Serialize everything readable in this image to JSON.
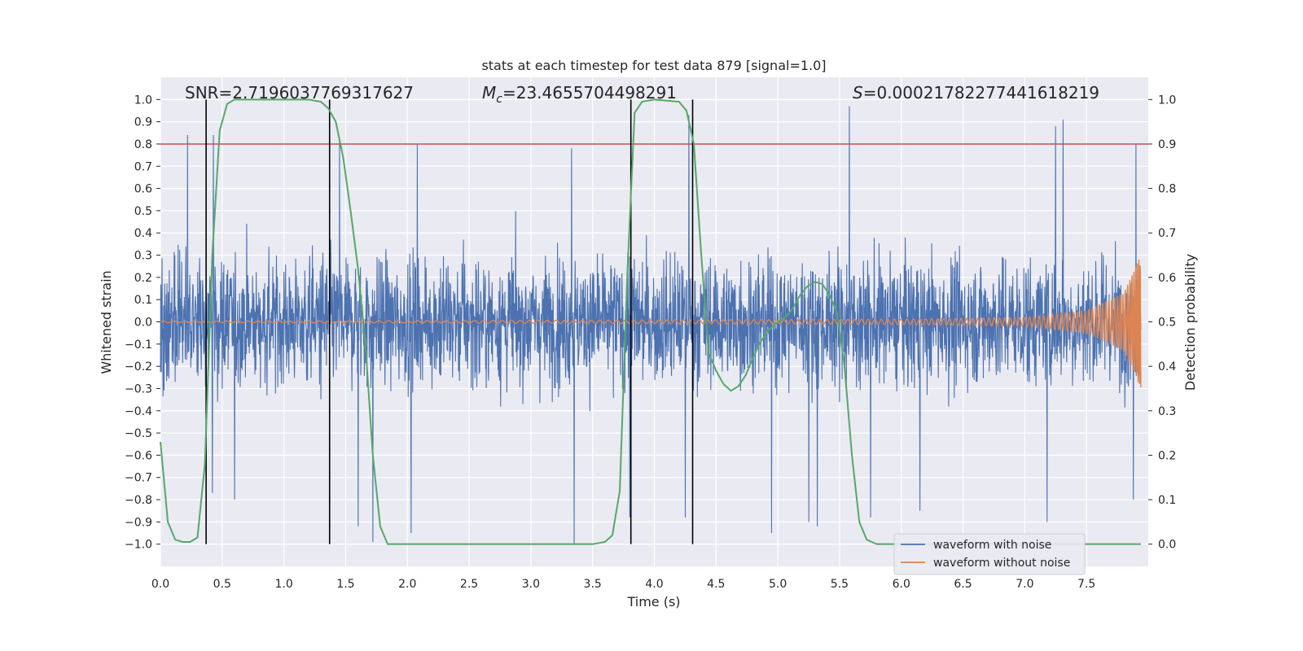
{
  "chart_data": {
    "type": "line",
    "title": "stats at each timestep for test data 879 [signal=1.0]",
    "xlabel": "Time (s)",
    "ylabel_left": "Whitened strain",
    "ylabel_right": "Detection probability",
    "xlim": [
      0.0,
      8.0
    ],
    "ylim_left": [
      -1.1,
      1.1
    ],
    "ylim_right": [
      -0.05,
      1.05
    ],
    "x_ticks": [
      0.0,
      0.5,
      1.0,
      1.5,
      2.0,
      2.5,
      3.0,
      3.5,
      4.0,
      4.5,
      5.0,
      5.5,
      6.0,
      6.5,
      7.0,
      7.5
    ],
    "x_tick_labels": [
      "0.0",
      "0.5",
      "1.0",
      "1.5",
      "2.0",
      "2.5",
      "3.0",
      "3.5",
      "4.0",
      "4.5",
      "5.0",
      "5.5",
      "6.0",
      "6.5",
      "7.0",
      "7.5"
    ],
    "y_left_ticks": [
      1.0,
      0.9,
      0.8,
      0.7,
      0.6,
      0.5,
      0.4,
      0.3,
      0.2,
      0.1,
      0.0,
      -0.1,
      -0.2,
      -0.3,
      -0.4,
      -0.5,
      -0.6,
      -0.7,
      -0.8,
      -0.9,
      -1.0
    ],
    "y_left_tick_labels": [
      "1.0",
      "0.9",
      "0.8",
      "0.7",
      "0.6",
      "0.5",
      "0.4",
      "0.3",
      "0.2",
      "0.1",
      "0.0",
      "−0.1",
      "−0.2",
      "−0.3",
      "−0.4",
      "−0.5",
      "−0.6",
      "−0.7",
      "−0.8",
      "−0.9",
      "−1.0"
    ],
    "y_right_ticks": [
      1.0,
      0.9,
      0.8,
      0.7,
      0.6,
      0.5,
      0.4,
      0.3,
      0.2,
      0.1,
      0.0
    ],
    "y_right_tick_labels": [
      "1.0",
      "0.9",
      "0.8",
      "0.7",
      "0.6",
      "0.5",
      "0.4",
      "0.3",
      "0.2",
      "0.1",
      "0.0"
    ],
    "grid": true,
    "legend_position": "lower-right",
    "annotations": [
      {
        "text": "SNR=2.7196037769317627"
      },
      {
        "prefix": "M",
        "subscript": "c",
        "text": "=23.4655704498291"
      },
      {
        "prefix": "S",
        "text": "=0.00021782277441618219"
      }
    ],
    "threshold_probability": 0.9,
    "vertical_markers_s": [
      0.37,
      1.37,
      3.81,
      4.31
    ],
    "series": [
      {
        "name": "waveform with noise",
        "color": "#4c72b0",
        "description_stats": {
          "typical_range": [
            -0.45,
            0.5
          ],
          "max": 0.97,
          "min": -1.0
        },
        "spikes_high": [
          [
            0.22,
            0.84
          ],
          [
            0.43,
            0.84
          ],
          [
            1.45,
            0.83
          ],
          [
            2.08,
            0.8
          ],
          [
            3.33,
            0.78
          ],
          [
            4.28,
            0.93
          ],
          [
            5.58,
            0.97
          ],
          [
            7.25,
            0.88
          ],
          [
            7.31,
            0.91
          ],
          [
            7.9,
            0.8
          ]
        ],
        "spikes_low": [
          [
            0.42,
            -0.77
          ],
          [
            0.6,
            -0.8
          ],
          [
            1.6,
            -0.92
          ],
          [
            1.72,
            -0.99
          ],
          [
            2.03,
            -0.95
          ],
          [
            3.35,
            -1.0
          ],
          [
            3.8,
            -0.88
          ],
          [
            4.25,
            -0.88
          ],
          [
            4.95,
            -0.95
          ],
          [
            5.25,
            -0.9
          ],
          [
            5.32,
            -0.92
          ],
          [
            5.75,
            -0.88
          ],
          [
            6.15,
            -0.85
          ],
          [
            7.18,
            -0.9
          ],
          [
            7.88,
            -0.8
          ]
        ]
      },
      {
        "name": "waveform without noise",
        "color": "#dd8452",
        "description": "chirp amplitude grows toward the end",
        "amplitude_points": [
          [
            0.0,
            0.003
          ],
          [
            2.0,
            0.005
          ],
          [
            4.0,
            0.008
          ],
          [
            6.0,
            0.012
          ],
          [
            7.0,
            0.02
          ],
          [
            7.5,
            0.05
          ],
          [
            7.8,
            0.13
          ],
          [
            7.9,
            0.25
          ],
          [
            7.94,
            0.3
          ]
        ]
      },
      {
        "name": "Detection probability",
        "axis": "right",
        "color": "#55a868",
        "x": [
          0.0,
          0.06,
          0.12,
          0.18,
          0.24,
          0.3,
          0.36,
          0.42,
          0.48,
          0.54,
          0.6,
          0.8,
          1.0,
          1.2,
          1.3,
          1.36,
          1.42,
          1.48,
          1.54,
          1.6,
          1.66,
          1.72,
          1.78,
          1.84,
          2.0,
          2.5,
          3.0,
          3.5,
          3.6,
          3.66,
          3.72,
          3.78,
          3.84,
          3.9,
          4.0,
          4.2,
          4.26,
          4.32,
          4.38,
          4.44,
          4.5,
          4.56,
          4.62,
          4.68,
          4.74,
          4.8,
          4.86,
          4.92,
          5.0,
          5.06,
          5.12,
          5.18,
          5.24,
          5.3,
          5.36,
          5.42,
          5.48,
          5.54,
          5.6,
          5.66,
          5.72,
          5.8,
          6.0,
          7.0,
          7.94
        ],
        "y": [
          0.23,
          0.05,
          0.01,
          0.005,
          0.005,
          0.015,
          0.18,
          0.65,
          0.93,
          0.99,
          1.0,
          1.0,
          1.0,
          1.0,
          0.995,
          0.98,
          0.95,
          0.87,
          0.75,
          0.62,
          0.45,
          0.2,
          0.04,
          0.0,
          0.0,
          0.0,
          0.0,
          0.0,
          0.005,
          0.02,
          0.12,
          0.6,
          0.97,
          0.995,
          1.0,
          0.995,
          0.975,
          0.9,
          0.65,
          0.43,
          0.39,
          0.36,
          0.345,
          0.355,
          0.38,
          0.42,
          0.455,
          0.48,
          0.5,
          0.51,
          0.53,
          0.56,
          0.58,
          0.59,
          0.585,
          0.56,
          0.52,
          0.4,
          0.2,
          0.05,
          0.01,
          0.0,
          0.0,
          0.0,
          0.0
        ]
      }
    ]
  }
}
